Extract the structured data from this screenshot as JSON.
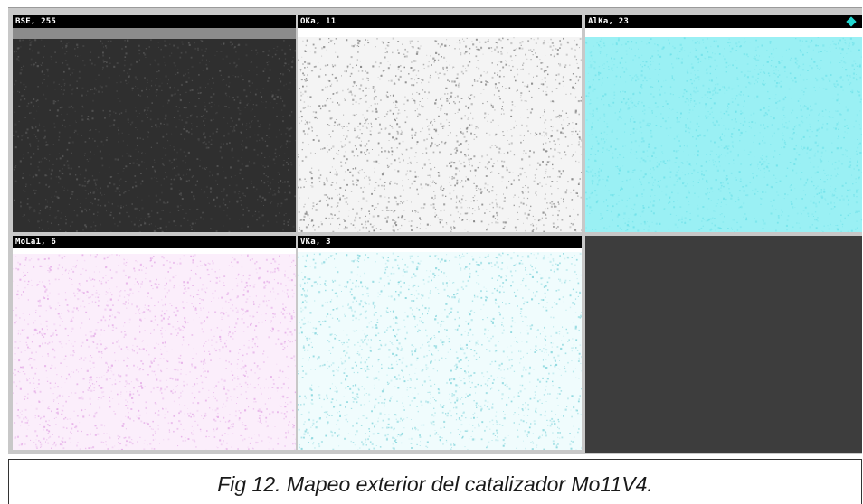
{
  "panels": [
    {
      "id": "bse",
      "label": "BSE, 255",
      "kind": "backscatter",
      "base": "#2f2f2f",
      "speckle": "#5a5a5a"
    },
    {
      "id": "o",
      "label": "OKa, 11",
      "kind": "element",
      "base": "#f4f4f4",
      "speckle": "#7a7a7a"
    },
    {
      "id": "al",
      "label": "AlKa, 23",
      "kind": "element",
      "base": "#9af0f4",
      "speckle": "#6fe1e9"
    },
    {
      "id": "mo",
      "label": "MoLa1, 6",
      "kind": "element",
      "base": "#fbeefb",
      "speckle": "#e3a9e6"
    },
    {
      "id": "v",
      "label": "VKa, 3",
      "kind": "element",
      "base": "#f0fcfd",
      "speckle": "#7fd3da"
    }
  ],
  "empty_panel_color": "#3d3d3d",
  "indicator_color": "#22d6d0",
  "caption": "Fig 12. Mapeo exterior del catalizador Mo11V4."
}
